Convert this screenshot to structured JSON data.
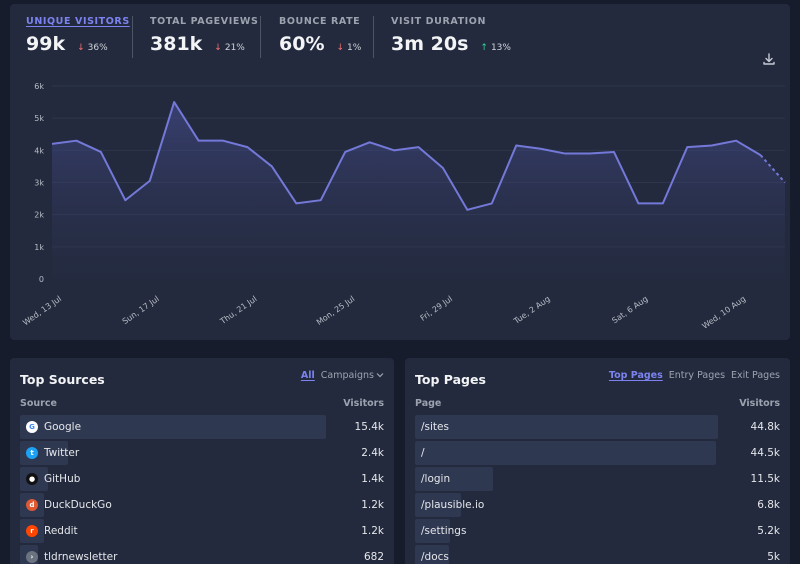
{
  "metrics": [
    {
      "label": "UNIQUE VISITORS",
      "value": "99k",
      "direction": "down",
      "arrow": "↓",
      "change": "36%"
    },
    {
      "label": "TOTAL PAGEVIEWS",
      "value": "381k",
      "direction": "down",
      "arrow": "↓",
      "change": "21%"
    },
    {
      "label": "BOUNCE RATE",
      "value": "60%",
      "direction": "down",
      "arrow": "↓",
      "change": "1%"
    },
    {
      "label": "VISIT DURATION",
      "value": "3m 20s",
      "direction": "up",
      "arrow": "↑",
      "change": "13%"
    }
  ],
  "chart_data": {
    "type": "area",
    "y_ticks": [
      "0",
      "1k",
      "2k",
      "3k",
      "4k",
      "5k",
      "6k"
    ],
    "ylim": [
      0,
      6000
    ],
    "grid": true,
    "x_tick_labels": [
      "Wed, 13 Jul",
      "Sun, 17 Jul",
      "Thu, 21 Jul",
      "Mon, 25 Jul",
      "Fri, 29 Jul",
      "Tue, 2 Aug",
      "Sat, 6 Aug",
      "Wed, 10 Aug"
    ],
    "x_tick_indices": [
      0,
      4,
      8,
      12,
      16,
      20,
      24,
      28
    ],
    "series": [
      {
        "values": [
          4200,
          4300,
          3950,
          2450,
          3050,
          5500,
          4300,
          4300,
          4100,
          3500,
          2350,
          2450,
          3950,
          4250,
          4000,
          4100,
          3450,
          2150,
          2350,
          4150,
          4050,
          3900,
          3900,
          3950,
          2350,
          2350,
          4100,
          4150,
          4300,
          3850,
          3000
        ],
        "dashed_last_segment": true,
        "color": "#7479d9"
      }
    ]
  },
  "top_sources": {
    "title": "Top Sources",
    "tabs": [
      "All",
      "Campaigns"
    ],
    "col_name": "Source",
    "col_value": "Visitors",
    "rows": [
      {
        "name": "Google",
        "value": "15.4k",
        "visitors": 15400,
        "icon": "google-icon",
        "icon_char": "G",
        "icon_bg": "#ffffff",
        "icon_fg": "#4285f4"
      },
      {
        "name": "Twitter",
        "value": "2.4k",
        "visitors": 2400,
        "icon": "twitter-icon",
        "icon_char": "t",
        "icon_bg": "#1da1f2",
        "icon_fg": "#ffffff"
      },
      {
        "name": "GitHub",
        "value": "1.4k",
        "visitors": 1400,
        "icon": "github-icon",
        "icon_char": "●",
        "icon_bg": "#111111",
        "icon_fg": "#ffffff"
      },
      {
        "name": "DuckDuckGo",
        "value": "1.2k",
        "visitors": 1200,
        "icon": "duckduckgo-icon",
        "icon_char": "d",
        "icon_bg": "#de5833",
        "icon_fg": "#ffffff"
      },
      {
        "name": "Reddit",
        "value": "1.2k",
        "visitors": 1200,
        "icon": "reddit-icon",
        "icon_char": "r",
        "icon_bg": "#ff4500",
        "icon_fg": "#ffffff"
      },
      {
        "name": "tldrnewsletter",
        "value": "682",
        "visitors": 682,
        "icon": "globe-icon",
        "icon_char": "›",
        "icon_bg": "#6b7280",
        "icon_fg": "#ffffff"
      }
    ]
  },
  "top_pages": {
    "title": "Top Pages",
    "tabs": [
      "Top Pages",
      "Entry Pages",
      "Exit Pages"
    ],
    "col_name": "Page",
    "col_value": "Visitors",
    "rows": [
      {
        "name": "/sites",
        "value": "44.8k",
        "visitors": 44800
      },
      {
        "name": "/",
        "value": "44.5k",
        "visitors": 44500
      },
      {
        "name": "/login",
        "value": "11.5k",
        "visitors": 11500
      },
      {
        "name": "/plausible.io",
        "value": "6.8k",
        "visitors": 6800
      },
      {
        "name": "/settings",
        "value": "5.2k",
        "visitors": 5200
      },
      {
        "name": "/docs",
        "value": "5k",
        "visitors": 5000
      }
    ]
  }
}
